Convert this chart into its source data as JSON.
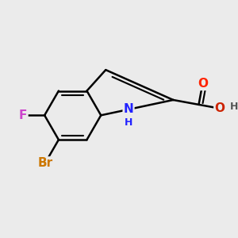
{
  "background_color": "#ebebeb",
  "bond_color": "#000000",
  "bond_width": 1.8,
  "atom_colors": {
    "N": "#2222ff",
    "O": "#ff2200",
    "F": "#cc44cc",
    "Br": "#cc7700",
    "H_dark": "#555555",
    "C": "#000000"
  },
  "font_size": 11,
  "small_font_size": 9,
  "oh_color": "#cc2200"
}
